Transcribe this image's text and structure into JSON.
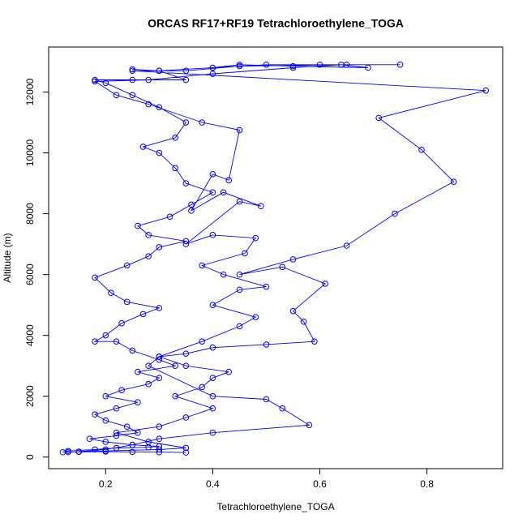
{
  "chart_data": {
    "type": "line",
    "title": "ORCAS RF17+RF19 Tetrachloroethylene_TOGA",
    "xlabel": "Tetrachloroethylene_TOGA",
    "ylabel": "Altitude (m)",
    "xlim": [
      0.0936,
      0.9414
    ],
    "ylim": [
      -380,
      13480
    ],
    "xticks": [
      0.2,
      0.4,
      0.6,
      0.8
    ],
    "yticks": [
      0,
      2000,
      4000,
      6000,
      8000,
      10000,
      12000
    ],
    "color": "#0000ff",
    "x": [
      0.35,
      0.3,
      0.25,
      0.2,
      0.15,
      0.12,
      0.13,
      0.18,
      0.22,
      0.28,
      0.3,
      0.25,
      0.2,
      0.17,
      0.22,
      0.26,
      0.24,
      0.2,
      0.18,
      0.22,
      0.26,
      0.2,
      0.23,
      0.28,
      0.3,
      0.26,
      0.33,
      0.3,
      0.25,
      0.22,
      0.18,
      0.2,
      0.23,
      0.27,
      0.3,
      0.24,
      0.21,
      0.18,
      0.24,
      0.28,
      0.3,
      0.35,
      0.28,
      0.26,
      0.32,
      0.36,
      0.4,
      0.35,
      0.33,
      0.3,
      0.27,
      0.33,
      0.35,
      0.3,
      0.25,
      0.2,
      0.18,
      0.25,
      0.35,
      0.3,
      0.4,
      0.5,
      0.6,
      0.75,
      0.65,
      0.45,
      0.35,
      0.25,
      0.91,
      0.71,
      0.79,
      0.85,
      0.74,
      0.65,
      0.55,
      0.45,
      0.53,
      0.61,
      0.55,
      0.57,
      0.59,
      0.5,
      0.4,
      0.35,
      0.3,
      0.28,
      0.4,
      0.5,
      0.53,
      0.58,
      0.4,
      0.3,
      0.25,
      0.2,
      0.15,
      null,
      0.13,
      0.2,
      0.3,
      0.35,
      0.28,
      0.22,
      0.3,
      0.35,
      0.4,
      0.33,
      0.38,
      0.4,
      0.43,
      0.35,
      0.3,
      0.38,
      0.45,
      0.48,
      0.4,
      0.45,
      0.5,
      0.42,
      0.38,
      0.46,
      0.48,
      0.4,
      0.35,
      0.45,
      0.49,
      0.42,
      0.36,
      0.4,
      0.43,
      0.45,
      0.38,
      0.28,
      0.22,
      0.18,
      0.28,
      0.4,
      0.55,
      0.64,
      0.69,
      0.55,
      0.45,
      0.4,
      0.3,
      0.25
    ],
    "y": [
      150,
      160,
      170,
      180,
      170,
      160,
      200,
      250,
      300,
      320,
      350,
      400,
      500,
      600,
      700,
      800,
      1000,
      1200,
      1400,
      1600,
      1800,
      2000,
      2200,
      2400,
      2600,
      2800,
      3000,
      3200,
      3500,
      3800,
      3800,
      4000,
      4400,
      4700,
      4900,
      5100,
      5400,
      5900,
      6300,
      6600,
      6900,
      7100,
      7300,
      7600,
      7900,
      8300,
      8700,
      9000,
      9500,
      10000,
      10200,
      10500,
      11000,
      11500,
      11900,
      12300,
      12400,
      12400,
      12400,
      12700,
      12800,
      12900,
      12900,
      12900,
      12900,
      12850,
      12700,
      12700,
      12050,
      11150,
      10100,
      9050,
      8000,
      6950,
      6500,
      6000,
      6250,
      5700,
      4800,
      4450,
      3800,
      3700,
      3600,
      3400,
      3300,
      3000,
      2000,
      1900,
      1600,
      1050,
      800,
      600,
      400,
      250,
      180,
      null,
      160,
      200,
      250,
      300,
      500,
      800,
      1000,
      1300,
      1600,
      2000,
      2300,
      2600,
      2800,
      3000,
      3300,
      3800,
      4300,
      4600,
      5000,
      5500,
      5600,
      6000,
      6300,
      6700,
      7200,
      7300,
      7000,
      8400,
      8250,
      8700,
      8100,
      9300,
      9100,
      10750,
      11000,
      11600,
      11900,
      12350,
      12400,
      12600,
      12800,
      12900,
      12800,
      12850,
      12900,
      12800,
      12700,
      12750
    ]
  }
}
